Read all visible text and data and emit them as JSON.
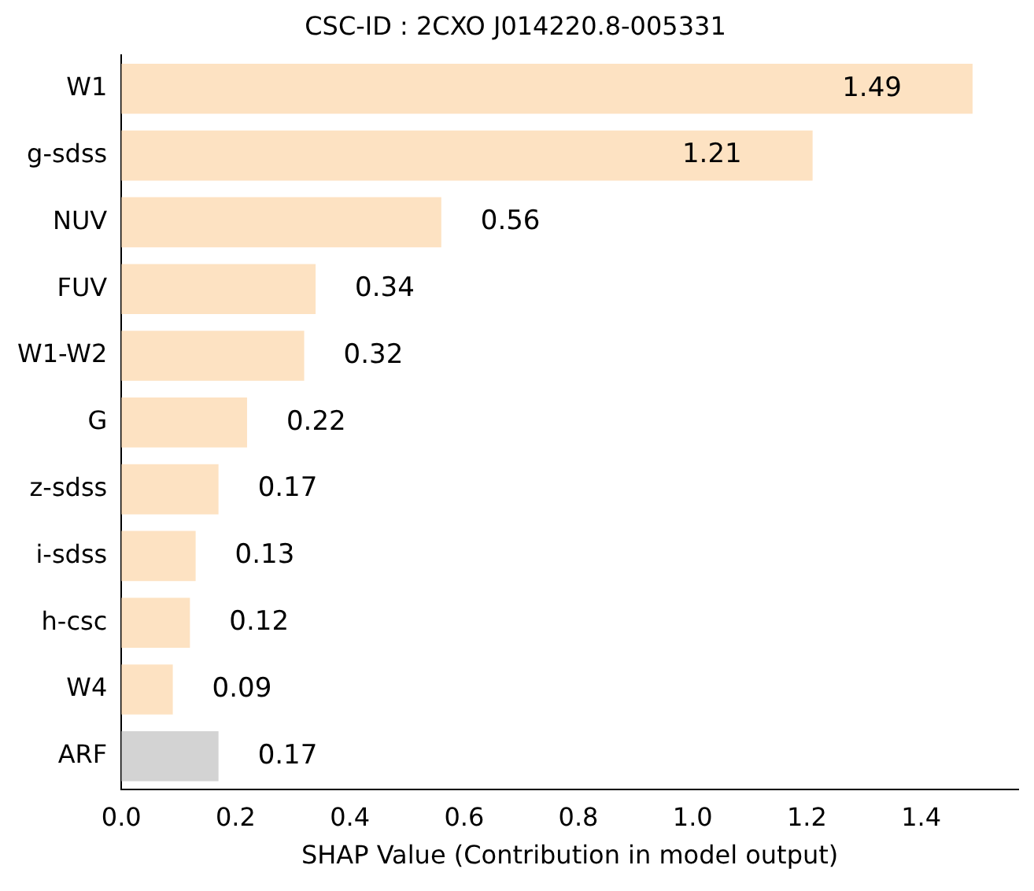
{
  "chart_data": {
    "type": "bar",
    "orientation": "horizontal",
    "title": "CSC-ID : 2CXO J014220.8-005331",
    "xlabel": "SHAP Value (Contribution in model output)",
    "categories": [
      "W1",
      "g-sdss",
      "NUV",
      "FUV",
      "W1-W2",
      "G",
      "z-sdss",
      "i-sdss",
      "h-csc",
      "W4",
      "ARF"
    ],
    "values": [
      1.49,
      1.21,
      0.56,
      0.34,
      0.32,
      0.22,
      0.17,
      0.13,
      0.12,
      0.09,
      0.17
    ],
    "colors": [
      "#fde2c2",
      "#fde2c2",
      "#fde2c2",
      "#fde2c2",
      "#fde2c2",
      "#fde2c2",
      "#fde2c2",
      "#fde2c2",
      "#fde2c2",
      "#fde2c2",
      "#d3d3d3"
    ],
    "xlim": [
      0,
      1.57
    ],
    "xticks": [
      {
        "value": 0,
        "label": "0.0"
      },
      0.2,
      0.4,
      0.6,
      0.8,
      {
        "value": 1,
        "label": "1.0"
      },
      1.2,
      1.4
    ],
    "data_labels": true,
    "grid": false,
    "legend": false
  }
}
